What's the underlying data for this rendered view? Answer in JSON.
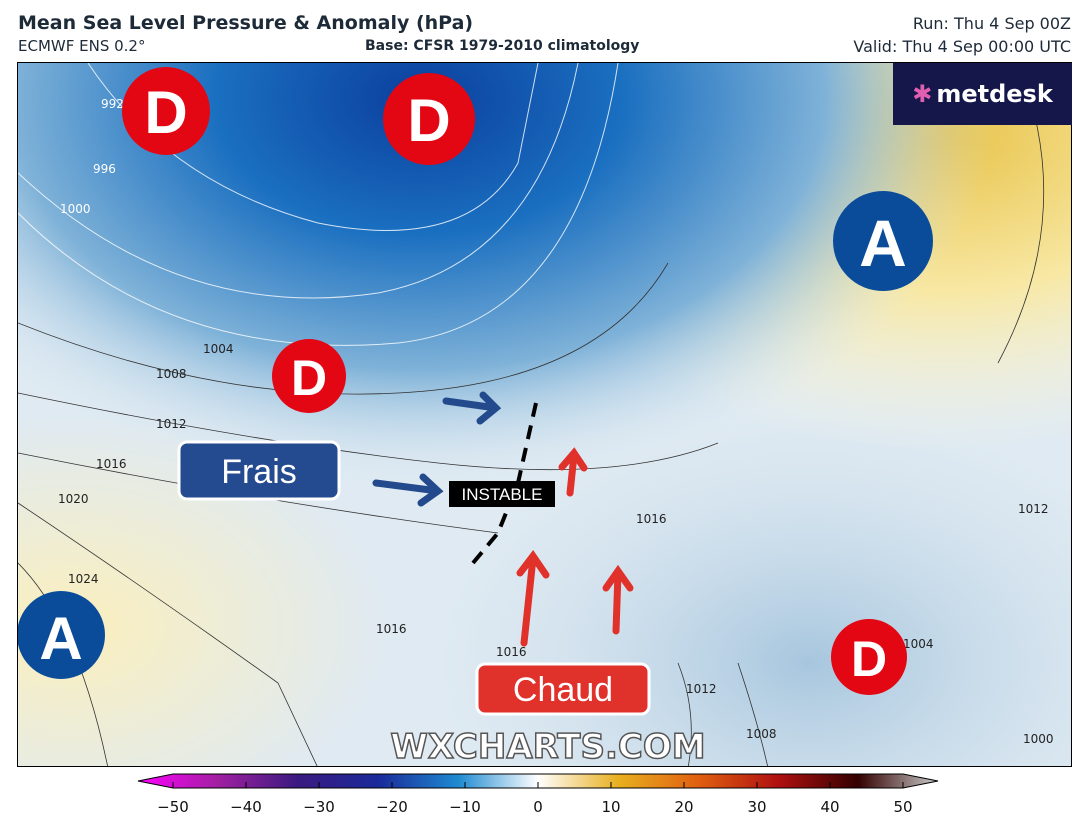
{
  "header": {
    "title": "Mean Sea Level Pressure & Anomaly (hPa)",
    "model": "ECMWF ENS 0.2°",
    "base": "Base: CFSR 1979-2010 climatology",
    "run": "Run: Thu 4 Sep 00Z",
    "valid": "Valid: Thu 4 Sep 00:00 UTC"
  },
  "logo": {
    "text": "metdesk"
  },
  "watermark": "WXCHARTS.COM",
  "annotations": {
    "lows": [
      "D",
      "D",
      "D",
      "D"
    ],
    "highs": [
      "A",
      "A"
    ],
    "cool": "Frais",
    "warm": "Chaud",
    "unstable": "INSTABLE"
  },
  "isobar_labels": [
    "992",
    "996",
    "1000",
    "1004",
    "1008",
    "1012",
    "1016",
    "1020",
    "1024",
    "1016",
    "1016",
    "1016",
    "1012",
    "1008",
    "1004",
    "1000",
    "1012"
  ],
  "colorbar": {
    "ticks": [
      "−50",
      "−40",
      "−30",
      "−20",
      "−10",
      "0",
      "10",
      "20",
      "30",
      "40",
      "50"
    ],
    "range": [
      -50,
      50
    ]
  },
  "colors": {
    "low": "#e30613",
    "high": "#0a4c9a",
    "cool_box": "#244b8f",
    "warm_box": "#e0312b"
  }
}
